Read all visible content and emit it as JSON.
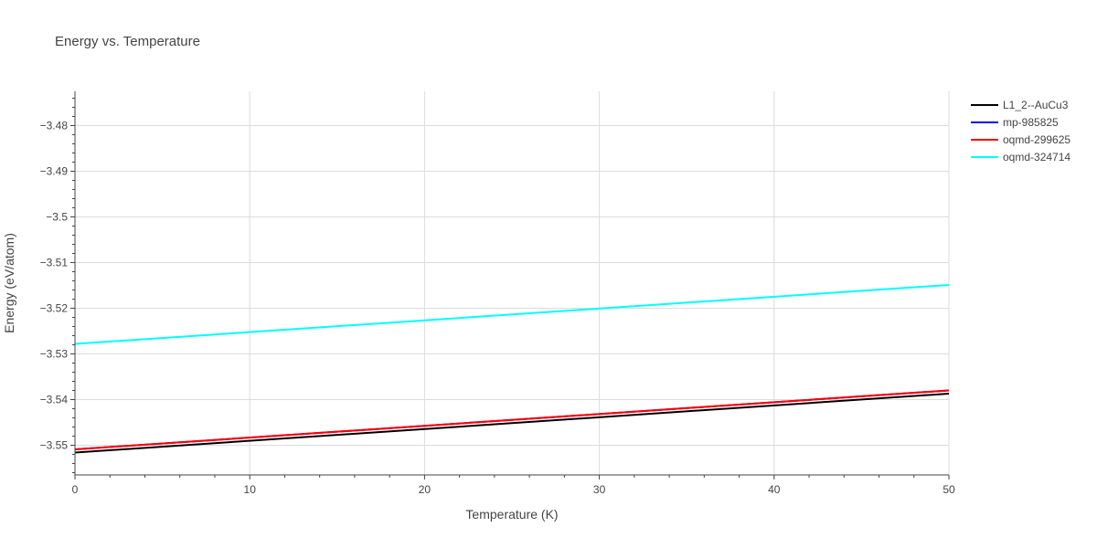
{
  "chart_data": {
    "type": "line",
    "title": "Energy vs. Temperature",
    "xlabel": "Temperature (K)",
    "ylabel": "Energy (eV/atom)",
    "xlim": [
      0,
      50
    ],
    "ylim": [
      -3.5565,
      -3.4725
    ],
    "xticks": [
      0,
      10,
      20,
      30,
      40,
      50
    ],
    "xtick_labels": [
      "0",
      "10",
      "20",
      "30",
      "40",
      "50"
    ],
    "yticks": [
      -3.55,
      -3.54,
      -3.53,
      -3.52,
      -3.51,
      -3.5,
      -3.49,
      -3.48
    ],
    "ytick_labels": [
      "−3.55",
      "−3.54",
      "−3.53",
      "−3.52",
      "−3.51",
      "−3.5",
      "−3.49",
      "−3.48"
    ],
    "grid": true,
    "legend_position": "top-right",
    "series": [
      {
        "name": "L1_2--AuCu3",
        "color": "#000000",
        "x": [
          0,
          50
        ],
        "y": [
          -3.5516,
          -3.5387
        ]
      },
      {
        "name": "mp-985825",
        "color": "#0000ff",
        "x": [
          0,
          50
        ],
        "y": [
          -3.5509,
          -3.538
        ]
      },
      {
        "name": "oqmd-299625",
        "color": "#ff0000",
        "x": [
          0,
          50
        ],
        "y": [
          -3.5509,
          -3.538
        ]
      },
      {
        "name": "oqmd-324714",
        "color": "#00ffff",
        "x": [
          0,
          50
        ],
        "y": [
          -3.5278,
          -3.5149
        ]
      }
    ]
  }
}
